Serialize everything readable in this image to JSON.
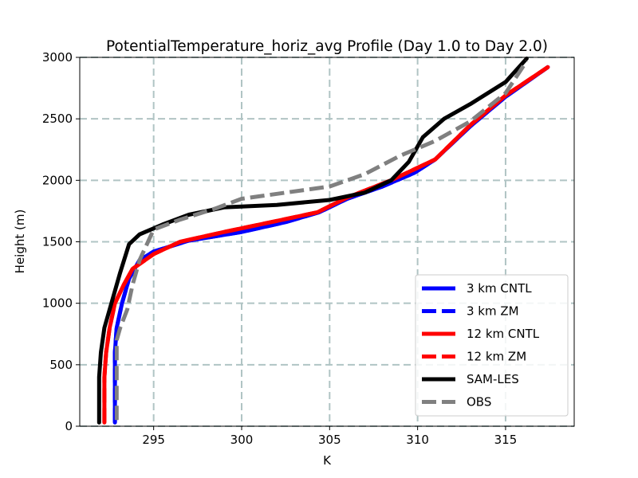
{
  "chart_data": {
    "type": "line",
    "title": "PotentialTemperature_horiz_avg Profile (Day 1.0 to Day 2.0)",
    "xlabel": "K",
    "ylabel": "Height (m)",
    "xlim": [
      290.8,
      318.9
    ],
    "ylim": [
      0,
      3000
    ],
    "xticks": [
      295,
      300,
      305,
      310,
      315
    ],
    "yticks": [
      0,
      500,
      1000,
      1500,
      2000,
      2500,
      3000
    ],
    "xtick_labels": [
      "295",
      "300",
      "305",
      "310",
      "315"
    ],
    "ytick_labels": [
      "0",
      "500",
      "1000",
      "1500",
      "2000",
      "2500",
      "3000"
    ],
    "grid": true,
    "legend_position": "lower-right",
    "series": [
      {
        "name": "3 km CNTL",
        "color": "#0000ff",
        "style": "solid",
        "points": [
          [
            292.8,
            30
          ],
          [
            292.8,
            200
          ],
          [
            292.8,
            400
          ],
          [
            292.8,
            600
          ],
          [
            292.9,
            800
          ],
          [
            293.2,
            1000
          ],
          [
            293.6,
            1200
          ],
          [
            294.2,
            1350
          ],
          [
            295.0,
            1420
          ],
          [
            297.0,
            1510
          ],
          [
            300.0,
            1580
          ],
          [
            302.5,
            1660
          ],
          [
            304.4,
            1740
          ],
          [
            306.0,
            1850
          ],
          [
            308.0,
            1950
          ],
          [
            309.8,
            2060
          ],
          [
            311.0,
            2170
          ],
          [
            313.0,
            2440
          ],
          [
            315.0,
            2680
          ],
          [
            317.4,
            2920
          ]
        ]
      },
      {
        "name": "3 km ZM",
        "color": "#0000ff",
        "style": "dashed",
        "points": [
          [
            292.8,
            30
          ],
          [
            292.8,
            200
          ],
          [
            292.8,
            400
          ],
          [
            292.8,
            600
          ],
          [
            292.9,
            800
          ],
          [
            293.2,
            1000
          ],
          [
            293.6,
            1200
          ],
          [
            294.2,
            1350
          ],
          [
            295.0,
            1420
          ],
          [
            297.0,
            1510
          ],
          [
            300.0,
            1580
          ],
          [
            302.5,
            1660
          ],
          [
            304.4,
            1740
          ],
          [
            306.0,
            1850
          ],
          [
            308.0,
            1950
          ],
          [
            309.8,
            2060
          ],
          [
            311.0,
            2170
          ],
          [
            313.0,
            2440
          ],
          [
            315.0,
            2680
          ],
          [
            317.4,
            2920
          ]
        ]
      },
      {
        "name": "12 km CNTL",
        "color": "#ff0000",
        "style": "solid",
        "points": [
          [
            292.2,
            30
          ],
          [
            292.2,
            200
          ],
          [
            292.2,
            400
          ],
          [
            292.3,
            600
          ],
          [
            292.5,
            800
          ],
          [
            292.8,
            1000
          ],
          [
            293.3,
            1150
          ],
          [
            293.8,
            1280
          ],
          [
            295.0,
            1400
          ],
          [
            296.5,
            1500
          ],
          [
            299.0,
            1580
          ],
          [
            302.0,
            1670
          ],
          [
            304.3,
            1740
          ],
          [
            306.0,
            1860
          ],
          [
            308.5,
            2000
          ],
          [
            311.0,
            2170
          ],
          [
            313.0,
            2450
          ],
          [
            315.0,
            2690
          ],
          [
            317.4,
            2920
          ]
        ]
      },
      {
        "name": "12 km ZM",
        "color": "#ff0000",
        "style": "dashed",
        "points": [
          [
            292.2,
            30
          ],
          [
            292.2,
            200
          ],
          [
            292.2,
            400
          ],
          [
            292.3,
            600
          ],
          [
            292.5,
            800
          ],
          [
            292.8,
            1000
          ],
          [
            293.3,
            1150
          ],
          [
            293.8,
            1280
          ],
          [
            295.0,
            1400
          ],
          [
            296.5,
            1500
          ],
          [
            299.0,
            1580
          ],
          [
            302.0,
            1670
          ],
          [
            304.3,
            1740
          ],
          [
            306.0,
            1860
          ],
          [
            308.5,
            2000
          ],
          [
            311.0,
            2170
          ],
          [
            313.0,
            2450
          ],
          [
            315.0,
            2690
          ],
          [
            317.4,
            2920
          ]
        ]
      },
      {
        "name": "SAM-LES",
        "color": "#000000",
        "style": "solid",
        "points": [
          [
            291.9,
            30
          ],
          [
            291.9,
            200
          ],
          [
            291.9,
            400
          ],
          [
            292.0,
            600
          ],
          [
            292.2,
            800
          ],
          [
            292.6,
            1000
          ],
          [
            293.1,
            1250
          ],
          [
            293.6,
            1480
          ],
          [
            294.2,
            1560
          ],
          [
            295.5,
            1640
          ],
          [
            297.0,
            1720
          ],
          [
            299.0,
            1780
          ],
          [
            302.0,
            1800
          ],
          [
            305.0,
            1840
          ],
          [
            307.0,
            1900
          ],
          [
            308.5,
            2000
          ],
          [
            309.5,
            2150
          ],
          [
            310.3,
            2350
          ],
          [
            311.5,
            2500
          ],
          [
            313.0,
            2620
          ],
          [
            315.0,
            2800
          ],
          [
            316.2,
            2990
          ]
        ]
      },
      {
        "name": "OBS",
        "color": "#808080",
        "style": "dashed",
        "points": [
          [
            292.9,
            50
          ],
          [
            292.9,
            300
          ],
          [
            292.9,
            500
          ],
          [
            292.9,
            700
          ],
          [
            293.1,
            800
          ],
          [
            293.5,
            950
          ],
          [
            293.8,
            1150
          ],
          [
            294.2,
            1350
          ],
          [
            295.0,
            1600
          ],
          [
            296.5,
            1680
          ],
          [
            298.5,
            1770
          ],
          [
            300.0,
            1850
          ],
          [
            302.5,
            1900
          ],
          [
            305.0,
            1950
          ],
          [
            307.0,
            2050
          ],
          [
            309.0,
            2200
          ],
          [
            311.0,
            2320
          ],
          [
            313.0,
            2480
          ],
          [
            315.0,
            2710
          ],
          [
            316.2,
            2970
          ]
        ]
      }
    ]
  }
}
